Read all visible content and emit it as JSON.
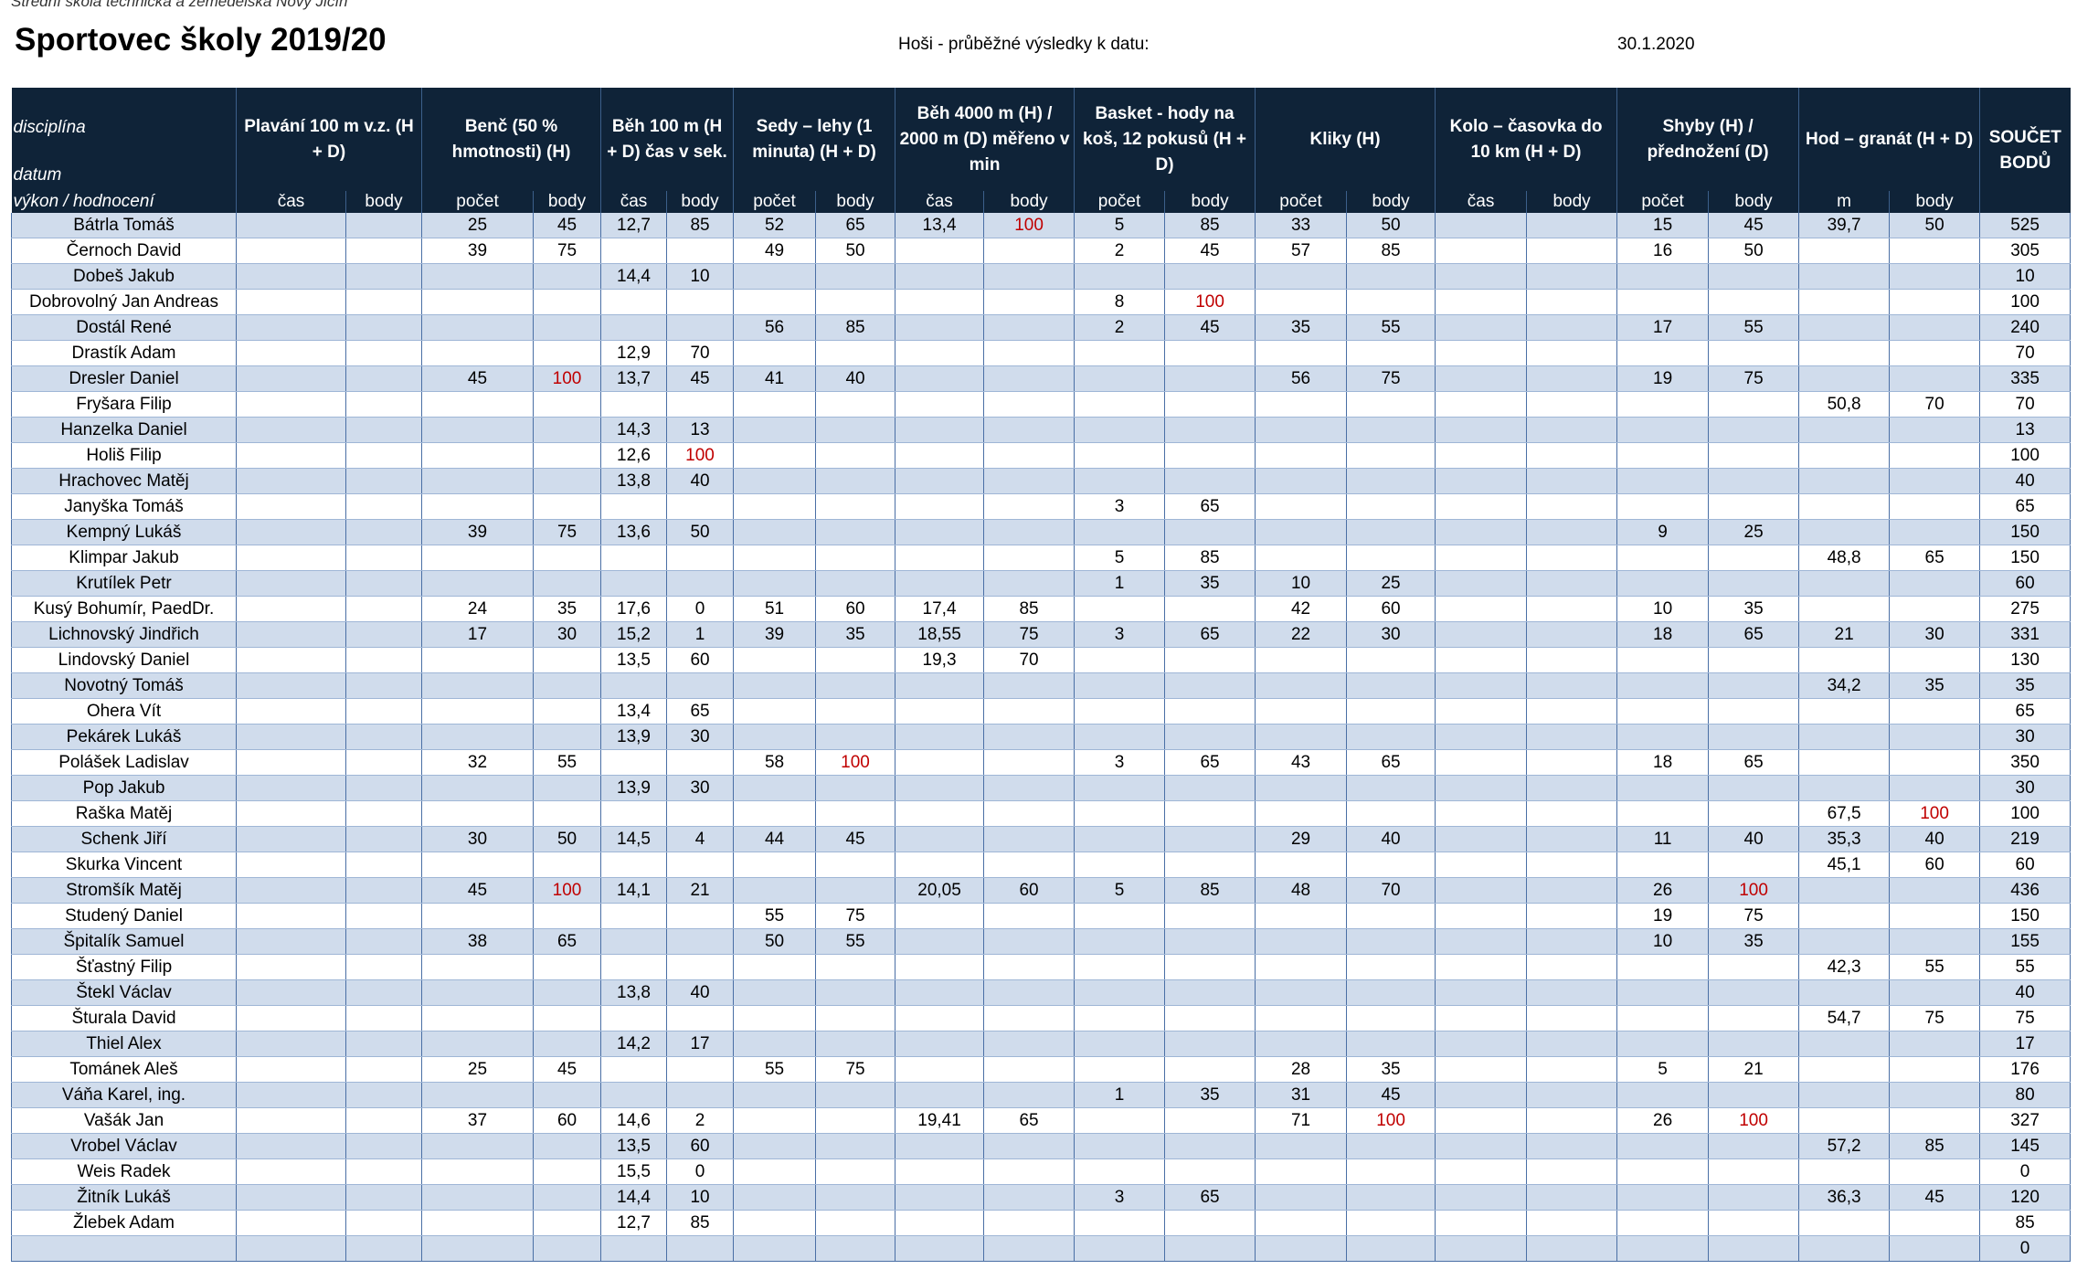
{
  "header": {
    "school": "Střední škola technická a zemědělská Nový Jičín",
    "title": "Sportovec školy 2019/20",
    "subtitle": "Hoši - průběžné výsledky k datu:",
    "date": "30.1.2020"
  },
  "table": {
    "corner": [
      "disciplína",
      "datum",
      "výkon / hodnocení"
    ],
    "disciplines": [
      {
        "name": "Plavání 100 m v.z. (H + D)",
        "sub": [
          "čas",
          "body"
        ]
      },
      {
        "name": "Benč (50 % hmotnosti) (H)",
        "sub": [
          "počet",
          "body"
        ]
      },
      {
        "name": "Běh 100 m (H + D) čas v sek.",
        "sub": [
          "čas",
          "body"
        ]
      },
      {
        "name": "Sedy – lehy (1 minuta) (H + D)",
        "sub": [
          "počet",
          "body"
        ]
      },
      {
        "name": "Běh 4000 m (H) / 2000 m (D) měřeno v min",
        "sub": [
          "čas",
          "body"
        ]
      },
      {
        "name": "Basket - hody na koš, 12 pokusů (H + D)",
        "sub": [
          "počet",
          "body"
        ]
      },
      {
        "name": "Kliky (H)",
        "sub": [
          "počet",
          "body"
        ]
      },
      {
        "name": "Kolo – časovka do 10 km (H + D)",
        "sub": [
          "čas",
          "body"
        ]
      },
      {
        "name": "Shyby (H) / přednožení (D)",
        "sub": [
          "počet",
          "body"
        ]
      },
      {
        "name": "Hod – granát (H + D)",
        "sub": [
          "m",
          "body"
        ]
      }
    ],
    "total": "SOUČET BODŮ",
    "rows": [
      [
        "Bátrla Tomáš",
        null,
        null,
        "25",
        "45",
        "12,7",
        "85",
        "52",
        "65",
        "13,4",
        {
          "value": "100",
          "color": "#c00000"
        },
        "5",
        "85",
        "33",
        "50",
        null,
        null,
        "15",
        "45",
        "39,7",
        "50",
        "525"
      ],
      [
        "Černoch David",
        null,
        null,
        "39",
        "75",
        null,
        null,
        "49",
        "50",
        null,
        null,
        "2",
        "45",
        "57",
        "85",
        null,
        null,
        "16",
        "50",
        null,
        null,
        "305"
      ],
      [
        "Dobeš Jakub",
        null,
        null,
        null,
        null,
        "14,4",
        "10",
        null,
        null,
        null,
        null,
        null,
        null,
        null,
        null,
        null,
        null,
        null,
        null,
        null,
        null,
        "10"
      ],
      [
        "Dobrovolný Jan Andreas",
        null,
        null,
        null,
        null,
        null,
        null,
        null,
        null,
        null,
        null,
        "8",
        {
          "value": "100",
          "color": "#c00000"
        },
        null,
        null,
        null,
        null,
        null,
        null,
        null,
        null,
        "100"
      ],
      [
        "Dostál René",
        null,
        null,
        null,
        null,
        null,
        null,
        "56",
        "85",
        null,
        null,
        "2",
        "45",
        "35",
        "55",
        null,
        null,
        "17",
        "55",
        null,
        null,
        "240"
      ],
      [
        "Drastík Adam",
        null,
        null,
        null,
        null,
        "12,9",
        "70",
        null,
        null,
        null,
        null,
        null,
        null,
        null,
        null,
        null,
        null,
        null,
        null,
        null,
        null,
        "70"
      ],
      [
        "Dresler Daniel",
        null,
        null,
        "45",
        {
          "value": "100",
          "color": "#c00000"
        },
        "13,7",
        "45",
        "41",
        "40",
        null,
        null,
        null,
        null,
        "56",
        "75",
        null,
        null,
        "19",
        "75",
        null,
        null,
        "335"
      ],
      [
        "Fryšara Filip",
        null,
        null,
        null,
        null,
        null,
        null,
        null,
        null,
        null,
        null,
        null,
        null,
        null,
        null,
        null,
        null,
        null,
        null,
        "50,8",
        "70",
        "70"
      ],
      [
        "Hanzelka Daniel",
        null,
        null,
        null,
        null,
        "14,3",
        "13",
        null,
        null,
        null,
        null,
        null,
        null,
        null,
        null,
        null,
        null,
        null,
        null,
        null,
        null,
        "13"
      ],
      [
        "Holiš Filip",
        null,
        null,
        null,
        null,
        "12,6",
        {
          "value": "100",
          "color": "#c00000"
        },
        null,
        null,
        null,
        null,
        null,
        null,
        null,
        null,
        null,
        null,
        null,
        null,
        null,
        null,
        "100"
      ],
      [
        "Hrachovec Matěj",
        null,
        null,
        null,
        null,
        "13,8",
        "40",
        null,
        null,
        null,
        null,
        null,
        null,
        null,
        null,
        null,
        null,
        null,
        null,
        null,
        null,
        "40"
      ],
      [
        "Janyška Tomáš",
        null,
        null,
        null,
        null,
        null,
        null,
        null,
        null,
        null,
        null,
        "3",
        "65",
        null,
        null,
        null,
        null,
        null,
        null,
        null,
        null,
        "65"
      ],
      [
        "Kempný Lukáš",
        null,
        null,
        "39",
        "75",
        "13,6",
        "50",
        null,
        null,
        null,
        null,
        null,
        null,
        null,
        null,
        null,
        null,
        "9",
        "25",
        null,
        null,
        "150"
      ],
      [
        "Klimpar Jakub",
        null,
        null,
        null,
        null,
        null,
        null,
        null,
        null,
        null,
        null,
        "5",
        "85",
        null,
        null,
        null,
        null,
        null,
        null,
        "48,8",
        "65",
        "150"
      ],
      [
        "Krutílek Petr",
        null,
        null,
        null,
        null,
        null,
        null,
        null,
        null,
        null,
        null,
        "1",
        "35",
        "10",
        "25",
        null,
        null,
        null,
        null,
        null,
        null,
        "60"
      ],
      [
        "Kusý Bohumír, PaedDr.",
        null,
        null,
        "24",
        "35",
        "17,6",
        "0",
        "51",
        "60",
        "17,4",
        "85",
        null,
        null,
        "42",
        "60",
        null,
        null,
        "10",
        "35",
        null,
        null,
        "275"
      ],
      [
        "Lichnovský Jindřich",
        null,
        null,
        "17",
        "30",
        "15,2",
        "1",
        "39",
        "35",
        "18,55",
        "75",
        "3",
        "65",
        "22",
        "30",
        null,
        null,
        "18",
        "65",
        "21",
        "30",
        "331"
      ],
      [
        "Lindovský Daniel",
        null,
        null,
        null,
        null,
        "13,5",
        "60",
        null,
        null,
        "19,3",
        "70",
        null,
        null,
        null,
        null,
        null,
        null,
        null,
        null,
        null,
        null,
        "130"
      ],
      [
        "Novotný Tomáš",
        null,
        null,
        null,
        null,
        null,
        null,
        null,
        null,
        null,
        null,
        null,
        null,
        null,
        null,
        null,
        null,
        null,
        null,
        "34,2",
        "35",
        "35"
      ],
      [
        "Ohera Vít",
        null,
        null,
        null,
        null,
        "13,4",
        "65",
        null,
        null,
        null,
        null,
        null,
        null,
        null,
        null,
        null,
        null,
        null,
        null,
        null,
        null,
        "65"
      ],
      [
        "Pekárek Lukáš",
        null,
        null,
        null,
        null,
        "13,9",
        "30",
        null,
        null,
        null,
        null,
        null,
        null,
        null,
        null,
        null,
        null,
        null,
        null,
        null,
        null,
        "30"
      ],
      [
        "Polášek Ladislav",
        null,
        null,
        "32",
        "55",
        null,
        null,
        "58",
        {
          "value": "100",
          "color": "#c00000"
        },
        null,
        null,
        "3",
        "65",
        "43",
        "65",
        null,
        null,
        "18",
        "65",
        null,
        null,
        "350"
      ],
      [
        "Pop Jakub",
        null,
        null,
        null,
        null,
        "13,9",
        "30",
        null,
        null,
        null,
        null,
        null,
        null,
        null,
        null,
        null,
        null,
        null,
        null,
        null,
        null,
        "30"
      ],
      [
        "Raška Matěj",
        null,
        null,
        null,
        null,
        null,
        null,
        null,
        null,
        null,
        null,
        null,
        null,
        null,
        null,
        null,
        null,
        null,
        null,
        "67,5",
        {
          "value": "100",
          "color": "#c00000"
        },
        "100"
      ],
      [
        "Schenk Jiří",
        null,
        null,
        "30",
        "50",
        "14,5",
        "4",
        "44",
        "45",
        null,
        null,
        null,
        null,
        "29",
        "40",
        null,
        null,
        "11",
        "40",
        "35,3",
        "40",
        "219"
      ],
      [
        "Skurka Vincent",
        null,
        null,
        null,
        null,
        null,
        null,
        null,
        null,
        null,
        null,
        null,
        null,
        null,
        null,
        null,
        null,
        null,
        null,
        "45,1",
        "60",
        "60"
      ],
      [
        "Stromšík Matěj",
        null,
        null,
        "45",
        {
          "value": "100",
          "color": "#c00000"
        },
        "14,1",
        "21",
        null,
        null,
        "20,05",
        "60",
        "5",
        "85",
        "48",
        "70",
        null,
        null,
        "26",
        {
          "value": "100",
          "color": "#c00000"
        },
        null,
        null,
        "436"
      ],
      [
        "Studený Daniel",
        null,
        null,
        null,
        null,
        null,
        null,
        "55",
        "75",
        null,
        null,
        null,
        null,
        null,
        null,
        null,
        null,
        "19",
        "75",
        null,
        null,
        "150"
      ],
      [
        "Špitalík Samuel",
        null,
        null,
        "38",
        "65",
        null,
        null,
        "50",
        "55",
        null,
        null,
        null,
        null,
        null,
        null,
        null,
        null,
        "10",
        "35",
        null,
        null,
        "155"
      ],
      [
        "Šťastný Filip",
        null,
        null,
        null,
        null,
        null,
        null,
        null,
        null,
        null,
        null,
        null,
        null,
        null,
        null,
        null,
        null,
        null,
        null,
        "42,3",
        "55",
        "55"
      ],
      [
        "Štekl Václav",
        null,
        null,
        null,
        null,
        "13,8",
        "40",
        null,
        null,
        null,
        null,
        null,
        null,
        null,
        null,
        null,
        null,
        null,
        null,
        null,
        null,
        "40"
      ],
      [
        "Šturala David",
        null,
        null,
        null,
        null,
        null,
        null,
        null,
        null,
        null,
        null,
        null,
        null,
        null,
        null,
        null,
        null,
        null,
        null,
        "54,7",
        "75",
        "75"
      ],
      [
        "Thiel Alex",
        null,
        null,
        null,
        null,
        "14,2",
        "17",
        null,
        null,
        null,
        null,
        null,
        null,
        null,
        null,
        null,
        null,
        null,
        null,
        null,
        null,
        "17"
      ],
      [
        "Tománek Aleš",
        null,
        null,
        "25",
        "45",
        null,
        null,
        "55",
        "75",
        null,
        null,
        null,
        null,
        "28",
        "35",
        null,
        null,
        "5",
        "21",
        null,
        null,
        "176"
      ],
      [
        "Váňa Karel, ing.",
        null,
        null,
        null,
        null,
        null,
        null,
        null,
        null,
        null,
        null,
        "1",
        "35",
        "31",
        "45",
        null,
        null,
        null,
        null,
        null,
        null,
        "80"
      ],
      [
        "Vašák Jan",
        null,
        null,
        "37",
        "60",
        "14,6",
        "2",
        null,
        null,
        "19,41",
        "65",
        null,
        null,
        "71",
        {
          "value": "100",
          "color": "#c00000"
        },
        null,
        null,
        "26",
        {
          "value": "100",
          "color": "#c00000"
        },
        null,
        null,
        "327"
      ],
      [
        "Vrobel Václav",
        null,
        null,
        null,
        null,
        "13,5",
        "60",
        null,
        null,
        null,
        null,
        null,
        null,
        null,
        null,
        null,
        null,
        null,
        null,
        "57,2",
        "85",
        "145"
      ],
      [
        "Weis Radek",
        null,
        null,
        null,
        null,
        "15,5",
        "0",
        null,
        null,
        null,
        null,
        null,
        null,
        null,
        null,
        null,
        null,
        null,
        null,
        null,
        null,
        "0"
      ],
      [
        "Žitník Lukáš",
        null,
        null,
        null,
        null,
        "14,4",
        "10",
        null,
        null,
        null,
        null,
        "3",
        "65",
        null,
        null,
        null,
        null,
        null,
        null,
        "36,3",
        "45",
        "120"
      ],
      [
        "Žlebek Adam",
        null,
        null,
        null,
        null,
        "12,7",
        "85",
        null,
        null,
        null,
        null,
        null,
        null,
        null,
        null,
        null,
        null,
        null,
        null,
        null,
        null,
        "85"
      ],
      [
        null,
        null,
        null,
        null,
        null,
        null,
        null,
        null,
        null,
        null,
        null,
        null,
        null,
        null,
        null,
        null,
        null,
        null,
        null,
        null,
        null,
        "0"
      ]
    ]
  }
}
